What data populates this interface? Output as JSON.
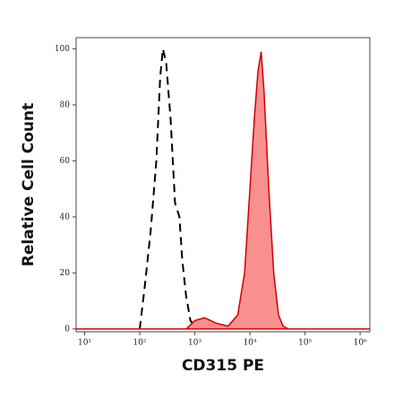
{
  "chart_data": {
    "type": "histogram-overlay",
    "xlabel": "CD315 PE",
    "ylabel": "Relative Cell Count",
    "xscale": "log",
    "xlim": [
      7,
      1500000
    ],
    "ylim": [
      -1,
      104
    ],
    "xticks": [
      {
        "value": 10,
        "label": "10¹"
      },
      {
        "value": 100,
        "label": "10²"
      },
      {
        "value": 1000,
        "label": "10³"
      },
      {
        "value": 10000,
        "label": "10⁴"
      },
      {
        "value": 100000,
        "label": "10⁵"
      },
      {
        "value": 1000000,
        "label": "10⁶"
      }
    ],
    "yticks": [
      0,
      20,
      40,
      60,
      80,
      100
    ],
    "series": [
      {
        "color": "#000000",
        "dashed": true,
        "x": [
          100,
          123,
          158,
          200,
          235,
          263,
          302,
          363,
          437,
          525,
          589,
          692,
          832,
          1070
        ],
        "values": [
          0,
          15,
          35,
          60,
          90,
          100,
          95,
          75,
          45,
          40,
          25,
          12,
          3,
          0
        ]
      },
      {
        "color": "#d40000",
        "fill_color": "#f89090",
        "dashed": false,
        "x": [
          7,
          700,
          1000,
          1500,
          2500,
          4000,
          6000,
          8000,
          10000,
          12000,
          14000,
          16000,
          18000,
          22000,
          27000,
          33000,
          40000,
          50000,
          1500000
        ],
        "values": [
          0,
          0,
          3,
          4,
          2,
          1,
          5,
          20,
          50,
          75,
          92,
          99,
          85,
          50,
          20,
          5,
          1,
          0,
          0
        ]
      }
    ]
  }
}
